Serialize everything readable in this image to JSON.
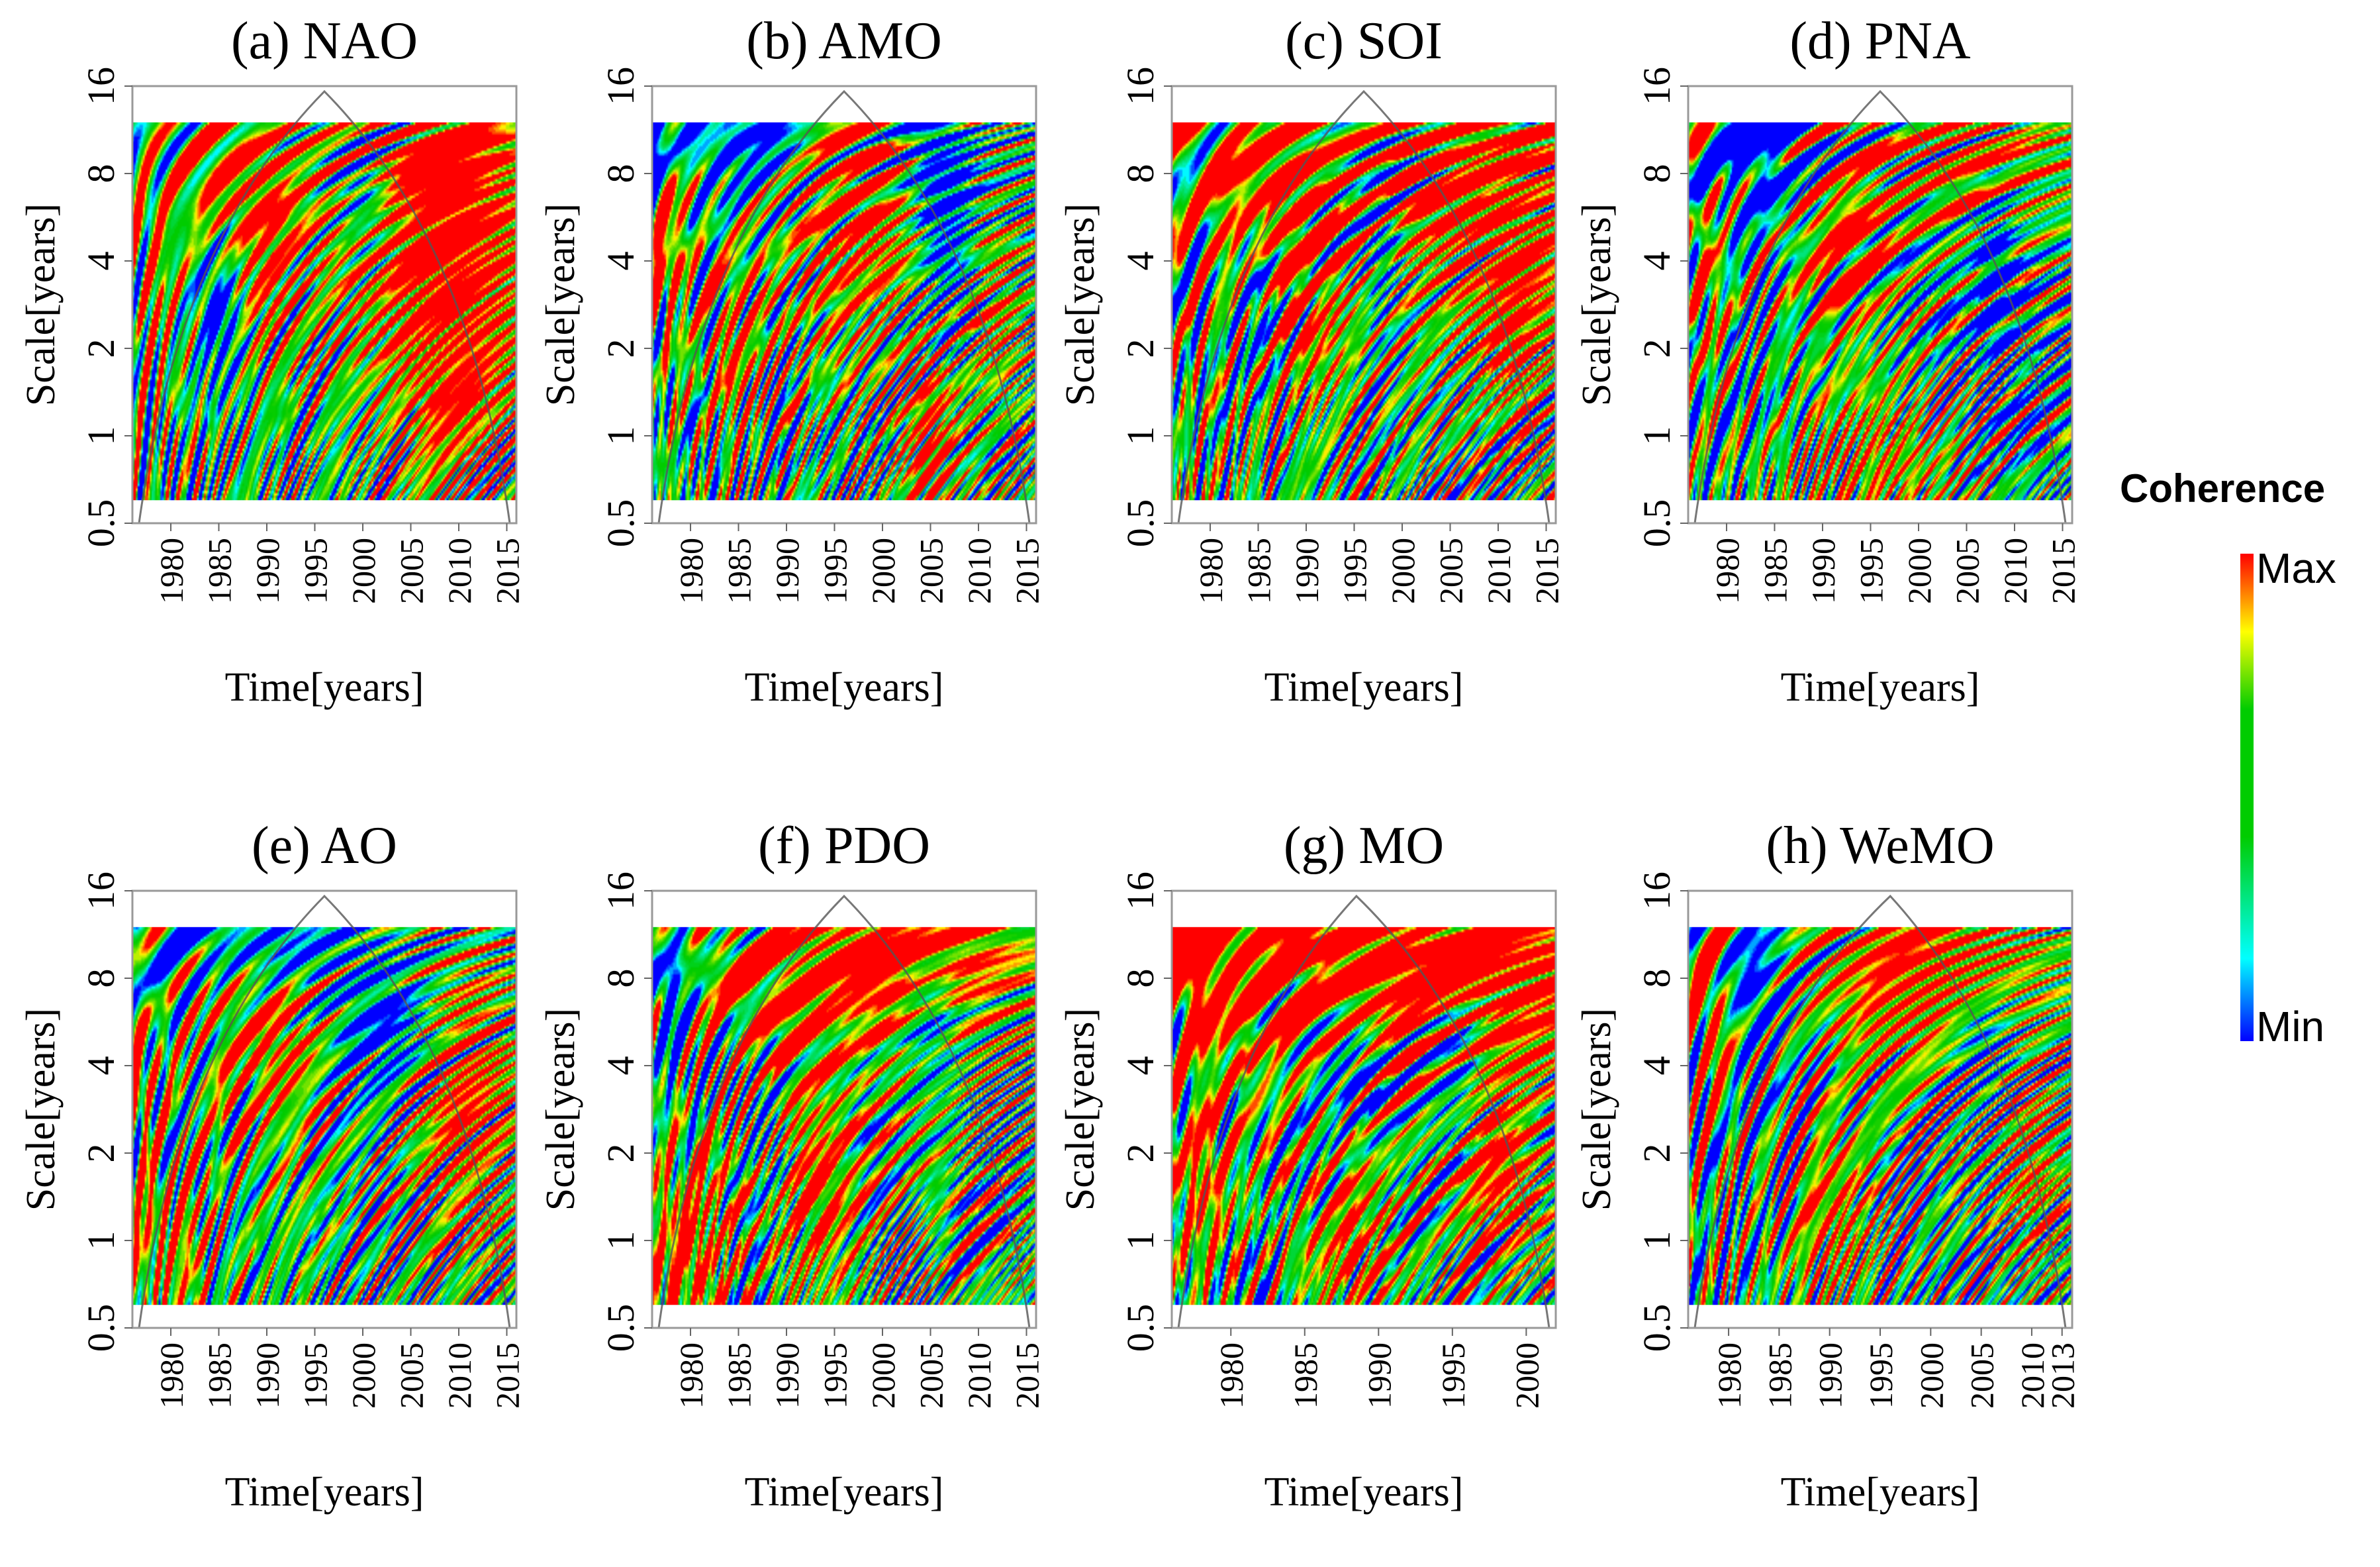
{
  "figure": {
    "colorbar": {
      "title": "Coherence",
      "max_label": "Max",
      "min_label": "Min",
      "colors": [
        "#0000ff",
        "#00ffff",
        "#00cc00",
        "#ffff00",
        "#ff0000"
      ]
    }
  },
  "chart_data": [
    {
      "type": "heatmap",
      "id": "a",
      "title": "(a) NAO",
      "xlabel": "Time[years]",
      "ylabel": "Scale[years]",
      "xlim": [
        1976,
        2016
      ],
      "ylim": [
        0.5,
        16
      ],
      "x_ticks": [
        1980,
        1985,
        1990,
        1995,
        2000,
        2005,
        2010,
        2015
      ],
      "y_ticks": [
        0.5,
        1,
        2,
        4,
        8,
        16
      ],
      "y_tick_labels": [
        "0.5",
        "1",
        "2",
        "4",
        "8",
        "16"
      ],
      "data_scale_range": [
        0.6,
        12
      ],
      "cone_peak": 1996,
      "bias": 0.45,
      "seed": 11,
      "hotspots": [
        [
          2005,
          8,
          12,
          4,
          1.2
        ],
        [
          1985,
          9,
          6,
          1.5,
          1.0
        ],
        [
          2010,
          2.5,
          6,
          4,
          1.4
        ],
        [
          1990,
          4,
          3,
          2,
          0.9
        ],
        [
          1978,
          3,
          2,
          2,
          0.8
        ]
      ],
      "coldspots": [
        [
          2000,
          7,
          3,
          1.5,
          1.2
        ],
        [
          1985,
          2.5,
          2,
          1.5,
          1.0
        ]
      ]
    },
    {
      "type": "heatmap",
      "id": "b",
      "title": "(b) AMO",
      "xlabel": "Time[years]",
      "ylabel": "Scale[years]",
      "xlim": [
        1976,
        2016
      ],
      "ylim": [
        0.5,
        16
      ],
      "x_ticks": [
        1980,
        1985,
        1990,
        1995,
        2000,
        2005,
        2010,
        2015
      ],
      "y_ticks": [
        0.5,
        1,
        2,
        4,
        8,
        16
      ],
      "y_tick_labels": [
        "0.5",
        "1",
        "2",
        "4",
        "8",
        "16"
      ],
      "data_scale_range": [
        0.6,
        12
      ],
      "cone_peak": 1996,
      "bias": 0.45,
      "seed": 23,
      "hotspots": [
        [
          1997,
          6,
          6,
          3,
          1.4
        ],
        [
          1985,
          2,
          3,
          2,
          1.0
        ],
        [
          2005,
          1,
          3,
          2,
          1.2
        ],
        [
          1978,
          4,
          2,
          2,
          1.0
        ],
        [
          2012,
          3,
          3,
          2,
          1.0
        ]
      ],
      "coldspots": [
        [
          1985,
          11,
          8,
          1.3,
          1.0
        ],
        [
          2005,
          10,
          4,
          1.2,
          1.0
        ],
        [
          2007,
          5,
          3,
          2,
          1.0
        ]
      ]
    },
    {
      "type": "heatmap",
      "id": "c",
      "title": "(c) SOI",
      "xlabel": "Time[years]",
      "ylabel": "Scale[years]",
      "xlim": [
        1976,
        2016
      ],
      "ylim": [
        0.5,
        16
      ],
      "x_ticks": [
        1980,
        1985,
        1990,
        1995,
        2000,
        2005,
        2010,
        2015
      ],
      "y_ticks": [
        0.5,
        1,
        2,
        4,
        8,
        16
      ],
      "y_tick_labels": [
        "0.5",
        "1",
        "2",
        "4",
        "8",
        "16"
      ],
      "data_scale_range": [
        0.6,
        12
      ],
      "cone_peak": 1996,
      "bias": 0.5,
      "seed": 37,
      "hotspots": [
        [
          2008,
          9,
          12,
          3,
          1.5
        ],
        [
          1985,
          8,
          8,
          2,
          1.2
        ],
        [
          2012,
          2.5,
          4,
          2,
          1.0
        ],
        [
          1990,
          3,
          4,
          2,
          1.0
        ]
      ],
      "coldspots": [
        [
          1998,
          5,
          2,
          2,
          1.0
        ],
        [
          1985,
          3,
          2,
          1.5,
          0.9
        ]
      ]
    },
    {
      "type": "heatmap",
      "id": "d",
      "title": "(d) PNA",
      "xlabel": "Time[years]",
      "ylabel": "Scale[years]",
      "xlim": [
        1976,
        2016
      ],
      "ylim": [
        0.5,
        16
      ],
      "x_ticks": [
        1980,
        1985,
        1990,
        1995,
        2000,
        2005,
        2010,
        2015
      ],
      "y_ticks": [
        0.5,
        1,
        2,
        4,
        8,
        16
      ],
      "y_tick_labels": [
        "0.5",
        "1",
        "2",
        "4",
        "8",
        "16"
      ],
      "data_scale_range": [
        0.6,
        12
      ],
      "cone_peak": 1996,
      "bias": 0.35,
      "seed": 53,
      "hotspots": [
        [
          2005,
          10,
          12,
          2,
          1.2
        ],
        [
          1992,
          4.5,
          5,
          2,
          1.2
        ],
        [
          1978,
          3,
          2,
          2,
          1.0
        ],
        [
          1995,
          0.8,
          10,
          2,
          0.9
        ]
      ],
      "coldspots": [
        [
          1984,
          10,
          5,
          1.3,
          1.3
        ],
        [
          2008,
          4,
          2,
          2,
          1.0
        ]
      ]
    },
    {
      "type": "heatmap",
      "id": "e",
      "title": "(e) AO",
      "xlabel": "Time[years]",
      "ylabel": "Scale[years]",
      "xlim": [
        1976,
        2016
      ],
      "ylim": [
        0.5,
        16
      ],
      "x_ticks": [
        1980,
        1985,
        1990,
        1995,
        2000,
        2005,
        2010,
        2015
      ],
      "y_ticks": [
        0.5,
        1,
        2,
        4,
        8,
        16
      ],
      "y_tick_labels": [
        "0.5",
        "1",
        "2",
        "4",
        "8",
        "16"
      ],
      "data_scale_range": [
        0.6,
        12
      ],
      "cone_peak": 1996,
      "bias": 0.45,
      "seed": 71,
      "hotspots": [
        [
          1990,
          5,
          6,
          2,
          1.2
        ],
        [
          2011,
          3,
          5,
          3,
          1.4
        ],
        [
          1980,
          1,
          4,
          2,
          1.0
        ],
        [
          1976,
          4,
          2,
          2,
          1.0
        ]
      ],
      "coldspots": [
        [
          1990,
          11,
          10,
          1.2,
          1.0
        ],
        [
          2002,
          5.5,
          5,
          1.5,
          1.0
        ]
      ]
    },
    {
      "type": "heatmap",
      "id": "f",
      "title": "(f) PDO",
      "xlabel": "Time[years]",
      "ylabel": "Scale[years]",
      "xlim": [
        1976,
        2016
      ],
      "ylim": [
        0.5,
        16
      ],
      "x_ticks": [
        1980,
        1985,
        1990,
        1995,
        2000,
        2005,
        2010,
        2015
      ],
      "y_ticks": [
        0.5,
        1,
        2,
        4,
        8,
        16
      ],
      "y_tick_labels": [
        "0.5",
        "1",
        "2",
        "4",
        "8",
        "16"
      ],
      "data_scale_range": [
        0.6,
        12
      ],
      "cone_peak": 1996,
      "bias": 0.5,
      "seed": 89,
      "hotspots": [
        [
          2000,
          10,
          14,
          2,
          1.5
        ],
        [
          1988,
          5,
          4,
          2,
          1.0
        ],
        [
          1980,
          1,
          4,
          2,
          1.2
        ],
        [
          1993,
          1.5,
          4,
          2,
          1.0
        ]
      ],
      "coldspots": [
        [
          1978,
          6,
          2,
          1.5,
          1.2
        ],
        [
          2005,
          6,
          3,
          1.5,
          1.0
        ],
        [
          1988,
          3,
          2,
          2,
          1.0
        ]
      ]
    },
    {
      "type": "heatmap",
      "id": "g",
      "title": "(g) MO",
      "xlabel": "Time[years]",
      "ylabel": "Scale[years]",
      "xlim": [
        1976,
        2002
      ],
      "ylim": [
        0.5,
        16
      ],
      "x_ticks": [
        1980,
        1985,
        1990,
        1995,
        2000
      ],
      "y_ticks": [
        0.5,
        1,
        2,
        4,
        8,
        16
      ],
      "y_tick_labels": [
        "0.5",
        "1",
        "2",
        "4",
        "8",
        "16"
      ],
      "data_scale_range": [
        0.6,
        12
      ],
      "cone_peak": 1988.5,
      "bias": 0.45,
      "seed": 101,
      "hotspots": [
        [
          1989,
          10,
          30,
          2.5,
          2.0
        ],
        [
          1998,
          1.8,
          3,
          2,
          1.2
        ],
        [
          1978,
          1.5,
          2,
          2,
          1.0
        ],
        [
          1988,
          1,
          3,
          2,
          1.0
        ]
      ],
      "coldspots": [
        [
          1988,
          4,
          3,
          1.5,
          1.0
        ],
        [
          1995,
          4,
          2,
          1.5,
          1.0
        ]
      ]
    },
    {
      "type": "heatmap",
      "id": "h",
      "title": "(h) WeMO",
      "xlabel": "Time[years]",
      "ylabel": "Scale[years]",
      "xlim": [
        1976,
        2014
      ],
      "ylim": [
        0.5,
        16
      ],
      "x_ticks": [
        1980,
        1985,
        1990,
        1995,
        2000,
        2005,
        2010,
        2013
      ],
      "y_ticks": [
        0.5,
        1,
        2,
        4,
        8,
        16
      ],
      "y_tick_labels": [
        "0.5",
        "1",
        "2",
        "4",
        "8",
        "16"
      ],
      "data_scale_range": [
        0.6,
        12
      ],
      "cone_peak": 1996,
      "bias": 0.45,
      "seed": 127,
      "hotspots": [
        [
          2000,
          9,
          10,
          2.5,
          1.5
        ],
        [
          1978,
          6,
          2,
          2,
          1.2
        ],
        [
          1990,
          1.2,
          4,
          2,
          1.0
        ],
        [
          2010,
          2,
          3,
          2,
          1.0
        ]
      ],
      "coldspots": [
        [
          2005,
          5,
          4,
          1.5,
          1.0
        ],
        [
          1983,
          7,
          3,
          1.5,
          1.0
        ]
      ]
    }
  ]
}
